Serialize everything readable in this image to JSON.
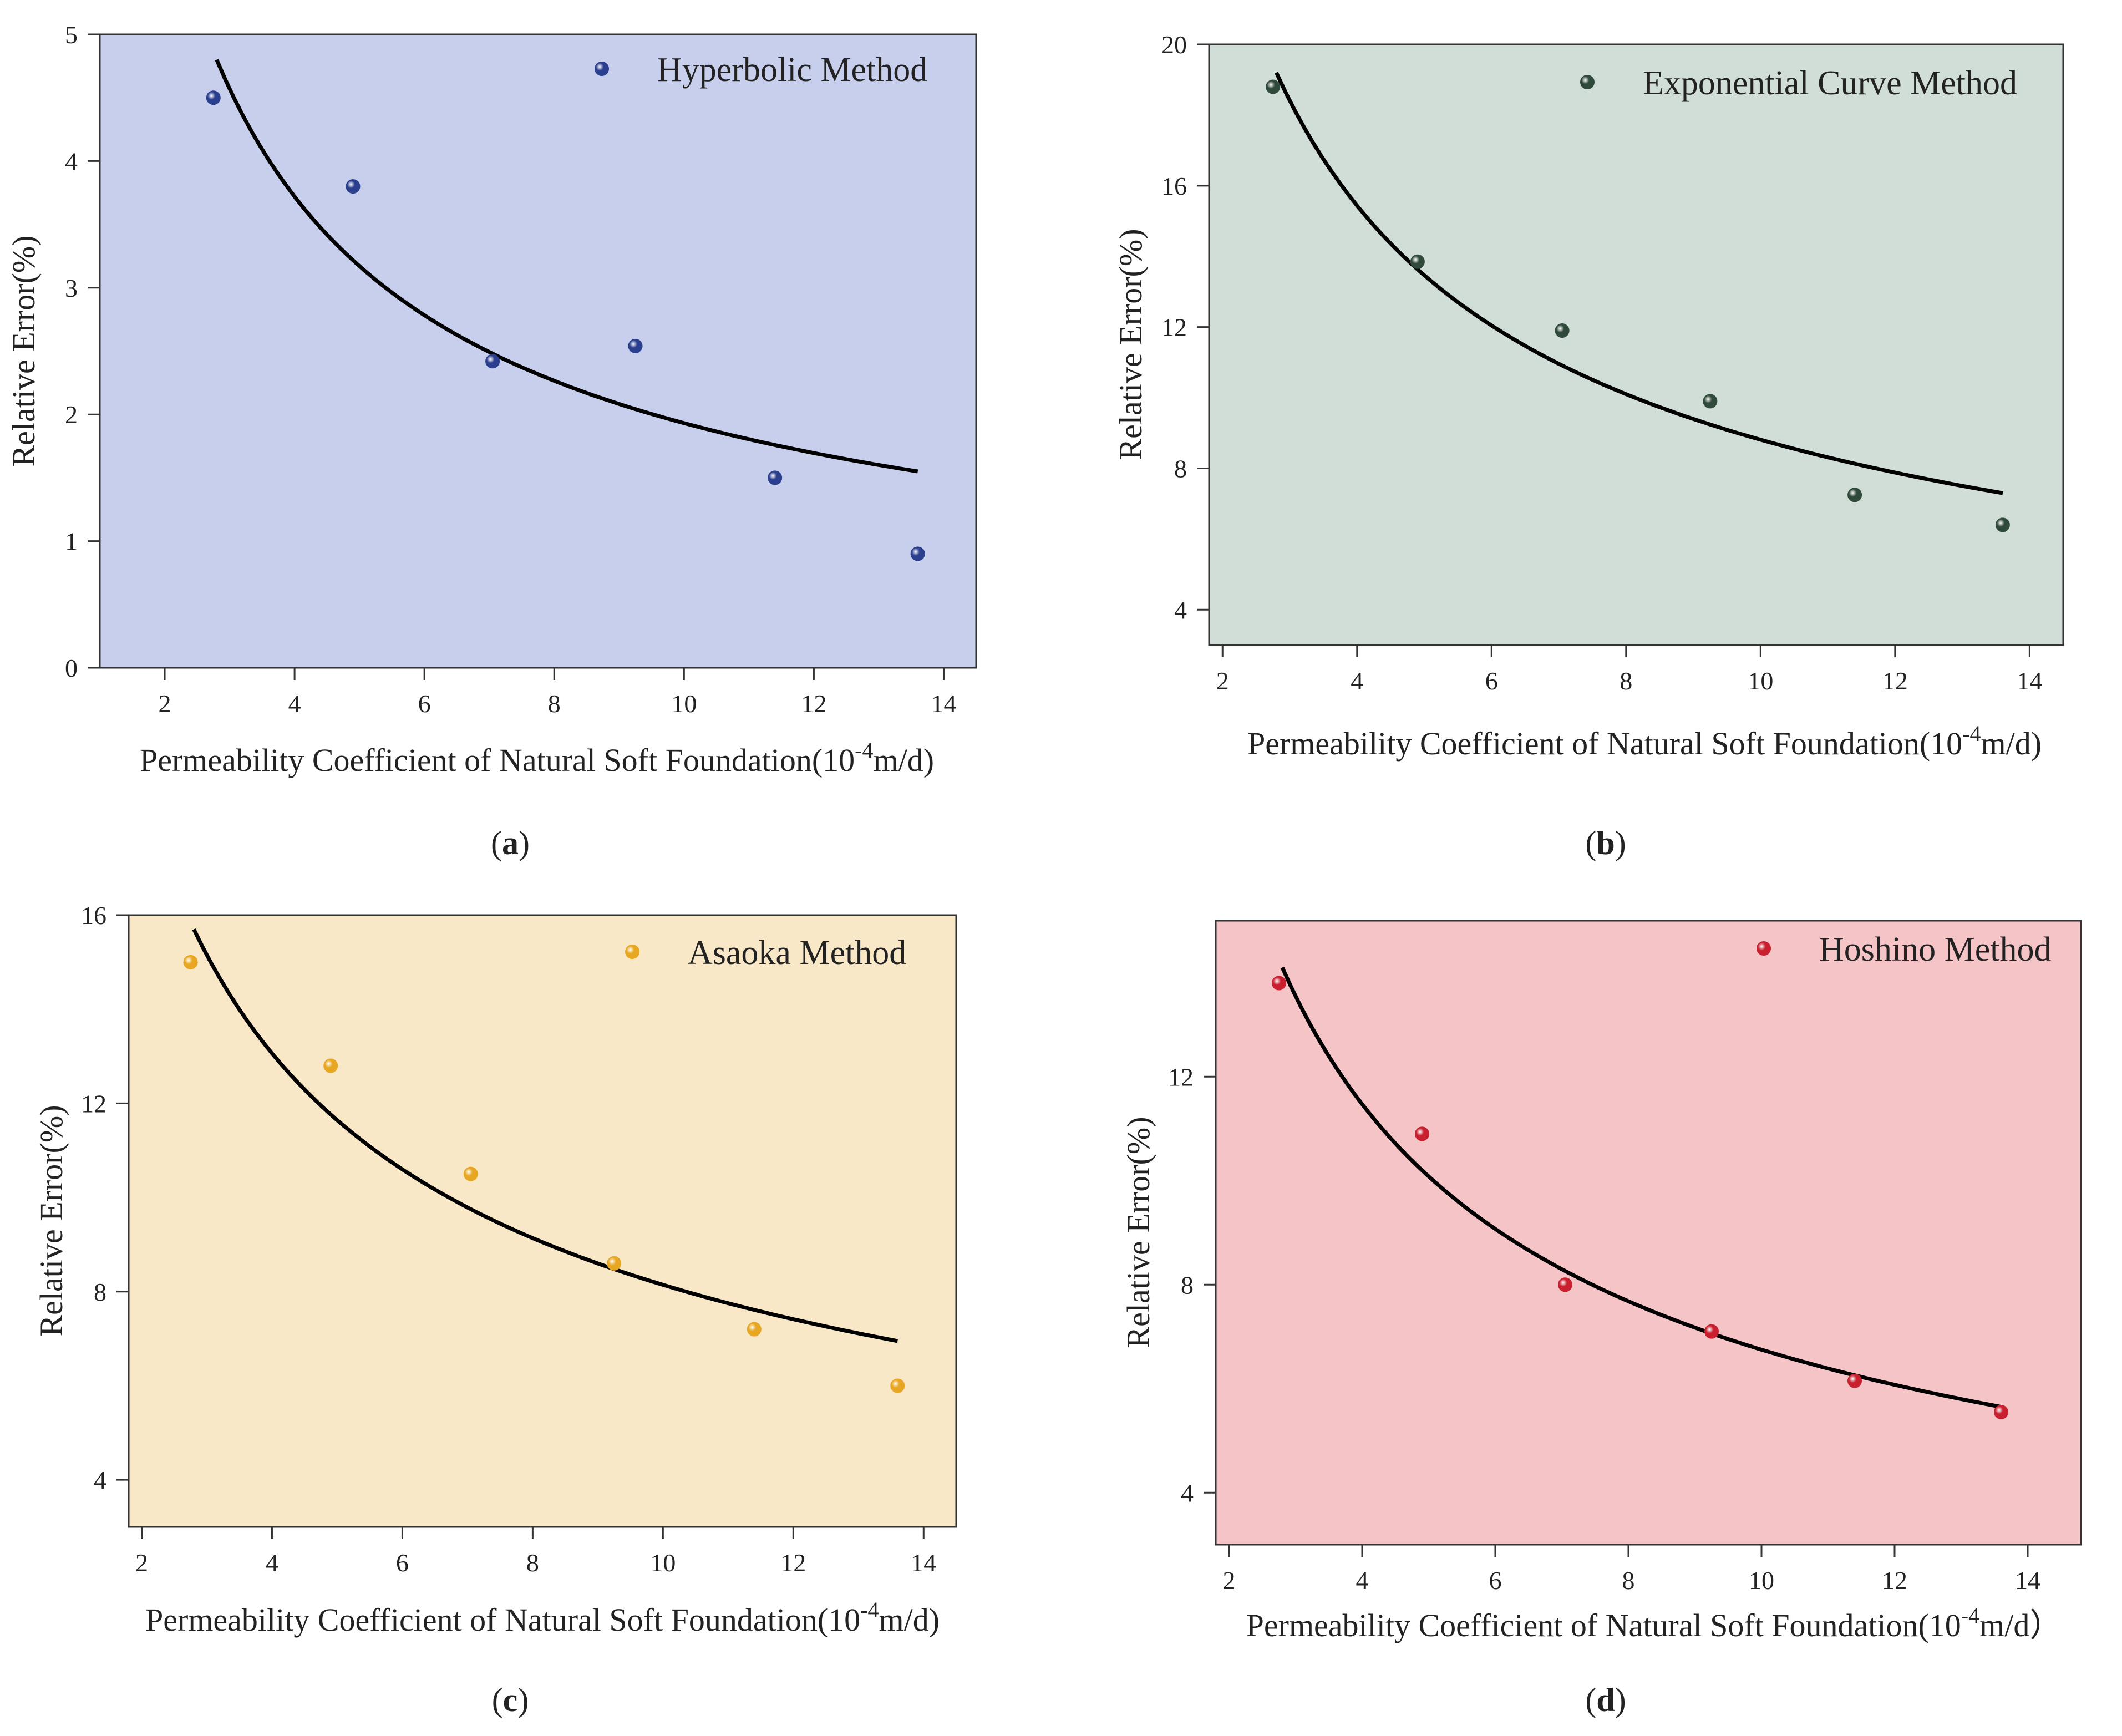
{
  "figure": {
    "colors": {
      "axis": "#333333",
      "curve": "#000000"
    }
  },
  "chart_data": [
    {
      "type": "scatter",
      "panel_label": "a",
      "legend": "Hyperbolic Method",
      "legend_position": "top-right",
      "xlabel_main": "Permeability Coefficient of Natural Soft Foundation(10",
      "xlabel_sup": "-4",
      "xlabel_tail": "m/d)",
      "ylabel": "Relative Error(%)",
      "xlim": [
        1,
        14.5
      ],
      "ylim": [
        0,
        5
      ],
      "xticks": [
        2,
        4,
        6,
        8,
        10,
        12,
        14
      ],
      "yticks": [
        0,
        1,
        2,
        3,
        4,
        5
      ],
      "background": "#c8cfec",
      "marker_color": "#2b3f8f",
      "series": [
        {
          "name": "Hyperbolic Method",
          "x": [
            2.75,
            4.9,
            7.05,
            9.25,
            11.4,
            13.6
          ],
          "y": [
            4.5,
            3.8,
            2.42,
            2.54,
            1.5,
            0.9
          ]
        }
      ],
      "fit": {
        "x0": 2.8,
        "x1": 13.6,
        "y0": 4.8,
        "y1": 1.55
      }
    },
    {
      "type": "scatter",
      "panel_label": "b",
      "legend": "Exponential Curve Method",
      "legend_position": "top-right",
      "xlabel_main": "Permeability Coefficient of Natural Soft Foundation(10",
      "xlabel_sup": "-4",
      "xlabel_tail": "m/d)",
      "ylabel": "Relative Error(%)",
      "xlim": [
        1.8,
        14.5
      ],
      "ylim": [
        3,
        20
      ],
      "xticks": [
        2,
        4,
        6,
        8,
        10,
        12,
        14
      ],
      "yticks": [
        4,
        8,
        12,
        16,
        20
      ],
      "background": "#d1ded7",
      "marker_color": "#2f4a3a",
      "series": [
        {
          "name": "Exponential Curve Method",
          "x": [
            2.75,
            4.9,
            7.05,
            9.25,
            11.4,
            13.6
          ],
          "y": [
            18.8,
            13.85,
            11.9,
            9.9,
            7.25,
            6.4
          ]
        }
      ],
      "fit": {
        "x0": 2.8,
        "x1": 13.6,
        "y0": 19.2,
        "y1": 7.3
      }
    },
    {
      "type": "scatter",
      "panel_label": "c",
      "legend": "Asaoka Method",
      "legend_position": "top-right",
      "xlabel_main": "Permeability Coefficient of Natural Soft Foundation(10",
      "xlabel_sup": "-4",
      "xlabel_tail": "m/d)",
      "ylabel": "Relative Error(%)",
      "xlim": [
        1.8,
        14.5
      ],
      "ylim": [
        3,
        16
      ],
      "xticks": [
        2,
        4,
        6,
        8,
        10,
        12,
        14
      ],
      "yticks": [
        4,
        8,
        12,
        16
      ],
      "background": "#f9e8c8",
      "marker_color": "#e8a722",
      "series": [
        {
          "name": "Asaoka Method",
          "x": [
            2.75,
            4.9,
            7.05,
            9.25,
            11.4,
            13.6
          ],
          "y": [
            15.0,
            12.8,
            10.5,
            8.6,
            7.2,
            6.0
          ]
        }
      ],
      "fit": {
        "x0": 2.8,
        "x1": 13.6,
        "y0": 15.7,
        "y1": 6.95
      }
    },
    {
      "type": "scatter",
      "panel_label": "d",
      "legend": "Hoshino Method",
      "legend_position": "top-right",
      "xlabel_main": "Permeability Coefficient of Natural Soft Foundation(10",
      "xlabel_sup": "-4",
      "xlabel_tail": "m/d）",
      "ylabel": "Relative Error(%)",
      "xlim": [
        1.8,
        14.8
      ],
      "ylim": [
        3,
        15
      ],
      "xticks": [
        2,
        4,
        6,
        8,
        10,
        12,
        14
      ],
      "yticks": [
        4,
        8,
        12
      ],
      "background": "#f5c4c6",
      "marker_color": "#c8202e",
      "series": [
        {
          "name": "Hoshino Method",
          "x": [
            2.75,
            4.9,
            7.05,
            9.25,
            11.4,
            13.6
          ],
          "y": [
            13.8,
            10.9,
            8.0,
            7.1,
            6.15,
            5.55
          ]
        }
      ],
      "fit": {
        "x0": 2.8,
        "x1": 13.6,
        "y0": 14.1,
        "y1": 5.65
      }
    }
  ]
}
